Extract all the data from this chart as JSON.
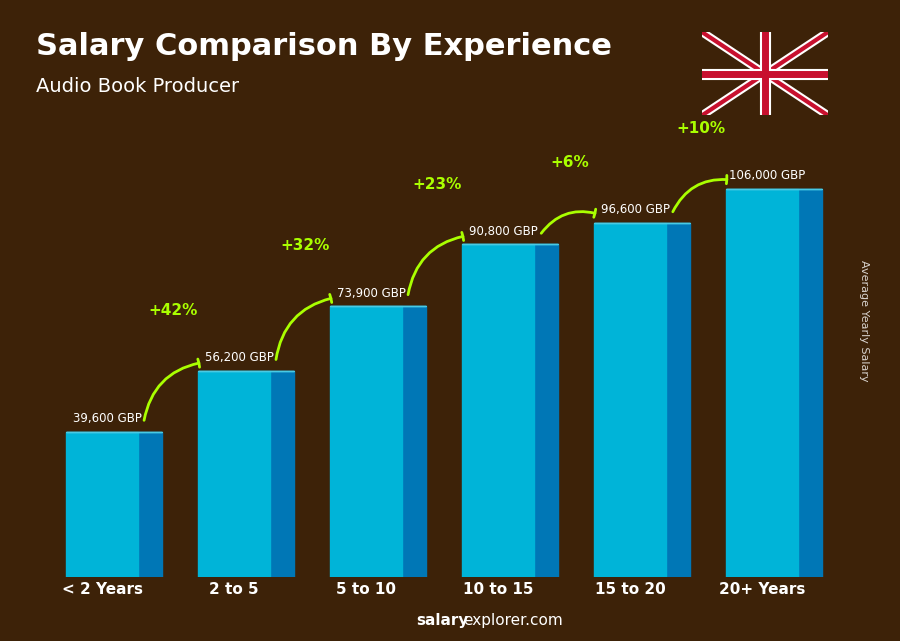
{
  "categories": [
    "< 2 Years",
    "2 to 5",
    "5 to 10",
    "10 to 15",
    "15 to 20",
    "20+ Years"
  ],
  "values": [
    39600,
    56200,
    73900,
    90800,
    96600,
    106000
  ],
  "labels": [
    "39,600 GBP",
    "56,200 GBP",
    "73,900 GBP",
    "90,800 GBP",
    "96,600 GBP",
    "106,000 GBP"
  ],
  "pct_changes": [
    "+42%",
    "+32%",
    "+23%",
    "+6%",
    "+10%"
  ],
  "bar_color_face": "#00b4d8",
  "bar_color_side": "#0077b6",
  "bar_color_top": "#48cae4",
  "bg_color": "#2c1a0e",
  "title": "Salary Comparison By Experience",
  "subtitle": "Audio Book Producer",
  "ylabel": "Average Yearly Salary",
  "footer": "salaryexplorer.com",
  "title_color": "#ffffff",
  "label_color": "#ffffff",
  "pct_color": "#aaff00",
  "footer_salary_color": "#ffffff",
  "arrow_color": "#aaff00"
}
